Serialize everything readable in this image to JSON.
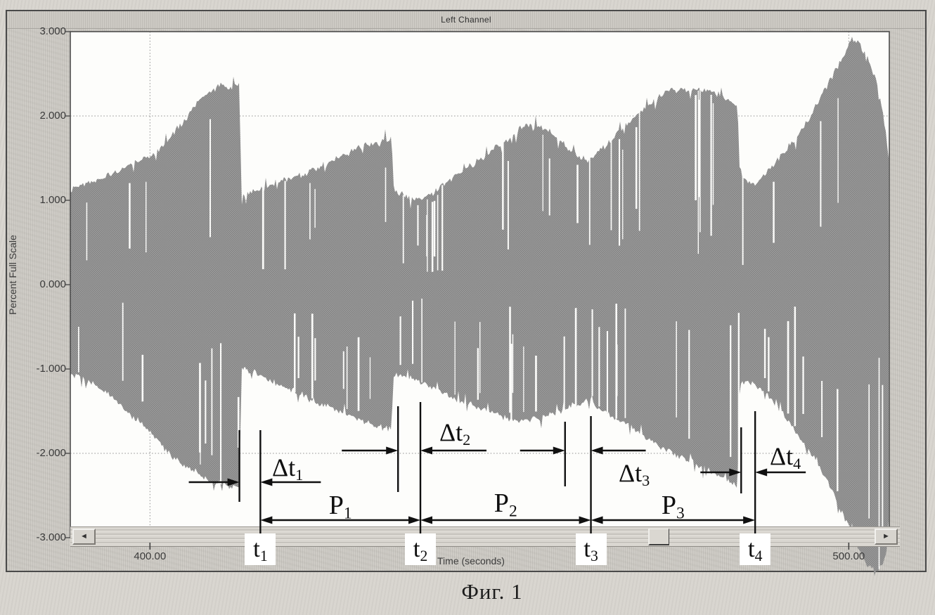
{
  "window": {
    "title": "Left Channel"
  },
  "figure": {
    "caption": "Фиг. 1"
  },
  "scrollbar": {
    "left_arrow": "◄",
    "right_arrow": "►"
  },
  "chart_data": {
    "type": "area",
    "subtype": "audio-waveform-envelope",
    "title": "Left Channel",
    "xlabel": "Time (seconds)",
    "ylabel": "Percent Full Scale",
    "xlim": [
      388.6,
      505.8
    ],
    "ylim": [
      -3.0,
      3.0
    ],
    "grid": true,
    "y_ticks": [
      {
        "value": 3,
        "label": "3.000"
      },
      {
        "value": 2,
        "label": "2.000"
      },
      {
        "value": 1,
        "label": "1.000"
      },
      {
        "value": 0,
        "label": "0.000"
      },
      {
        "value": -1,
        "label": "-1.000"
      },
      {
        "value": -2,
        "label": "-2.000"
      },
      {
        "value": -3,
        "label": "-3.000"
      }
    ],
    "x_ticks": [
      {
        "value": 400.0,
        "label": "400.00"
      },
      {
        "value": 500.0,
        "label": "500.00"
      }
    ],
    "series": [
      {
        "name": "envelope_top",
        "points": [
          [
            388.6,
            1.12
          ],
          [
            390,
            1.18
          ],
          [
            392,
            1.22
          ],
          [
            394,
            1.3
          ],
          [
            396,
            1.36
          ],
          [
            398,
            1.45
          ],
          [
            400,
            1.52
          ],
          [
            401.5,
            1.62
          ],
          [
            403,
            1.76
          ],
          [
            404.5,
            1.9
          ],
          [
            406,
            2.06
          ],
          [
            407.5,
            2.25
          ],
          [
            409,
            2.32
          ],
          [
            410.5,
            2.36
          ],
          [
            412,
            2.34
          ],
          [
            412.8,
            2.36
          ],
          [
            413.1,
            1.04
          ],
          [
            414.2,
            1.08
          ],
          [
            415.8,
            1.13
          ],
          [
            417.5,
            1.19
          ],
          [
            419.5,
            1.25
          ],
          [
            421.5,
            1.3
          ],
          [
            423.5,
            1.36
          ],
          [
            425.5,
            1.44
          ],
          [
            427.5,
            1.52
          ],
          [
            429.5,
            1.6
          ],
          [
            431,
            1.66
          ],
          [
            432.5,
            1.68
          ],
          [
            434.6,
            1.71
          ],
          [
            434.9,
            1.12
          ],
          [
            436,
            1.07
          ],
          [
            437.5,
            1.02
          ],
          [
            438.8,
            1.0
          ],
          [
            440,
            1.06
          ],
          [
            441.5,
            1.15
          ],
          [
            443,
            1.25
          ],
          [
            444.5,
            1.34
          ],
          [
            446,
            1.42
          ],
          [
            447.5,
            1.5
          ],
          [
            449,
            1.6
          ],
          [
            450.5,
            1.68
          ],
          [
            452,
            1.78
          ],
          [
            453.5,
            1.88
          ],
          [
            454.8,
            1.9
          ],
          [
            456,
            1.86
          ],
          [
            457.5,
            1.79
          ],
          [
            459,
            1.68
          ],
          [
            460.5,
            1.58
          ],
          [
            462,
            1.5
          ],
          [
            462.9,
            1.47
          ],
          [
            463.4,
            1.52
          ],
          [
            465,
            1.64
          ],
          [
            466.5,
            1.77
          ],
          [
            468,
            1.9
          ],
          [
            469.5,
            2.0
          ],
          [
            471,
            2.1
          ],
          [
            472.5,
            2.2
          ],
          [
            474,
            2.28
          ],
          [
            475.5,
            2.32
          ],
          [
            477,
            2.29
          ],
          [
            478.5,
            2.32
          ],
          [
            480,
            2.3
          ],
          [
            481.5,
            2.25
          ],
          [
            483,
            2.18
          ],
          [
            484.1,
            2.12
          ],
          [
            484.4,
            1.27
          ],
          [
            485.5,
            1.22
          ],
          [
            486.6,
            1.2
          ],
          [
            488,
            1.31
          ],
          [
            489.5,
            1.44
          ],
          [
            491,
            1.59
          ],
          [
            492.5,
            1.74
          ],
          [
            494,
            1.94
          ],
          [
            495.5,
            2.14
          ],
          [
            497,
            2.38
          ],
          [
            498.5,
            2.6
          ],
          [
            499.5,
            2.76
          ],
          [
            500.4,
            2.92
          ],
          [
            501.2,
            2.88
          ],
          [
            502,
            2.78
          ],
          [
            503,
            2.62
          ],
          [
            504,
            2.4
          ],
          [
            504.8,
            2.1
          ],
          [
            505.4,
            1.72
          ],
          [
            505.8,
            1.42
          ]
        ]
      },
      {
        "name": "envelope_bottom",
        "points": [
          [
            388.6,
            -1.05
          ],
          [
            390,
            -1.1
          ],
          [
            392,
            -1.18
          ],
          [
            394,
            -1.3
          ],
          [
            396,
            -1.44
          ],
          [
            398,
            -1.6
          ],
          [
            400,
            -1.74
          ],
          [
            402,
            -1.94
          ],
          [
            404,
            -2.1
          ],
          [
            406,
            -2.2
          ],
          [
            408,
            -2.3
          ],
          [
            410,
            -2.36
          ],
          [
            411.5,
            -2.38
          ],
          [
            412.8,
            -2.4
          ],
          [
            413.1,
            -0.98
          ],
          [
            414.5,
            -1.02
          ],
          [
            416,
            -1.09
          ],
          [
            418,
            -1.17
          ],
          [
            420,
            -1.24
          ],
          [
            422,
            -1.32
          ],
          [
            424,
            -1.4
          ],
          [
            426,
            -1.47
          ],
          [
            428,
            -1.54
          ],
          [
            430,
            -1.61
          ],
          [
            432,
            -1.67
          ],
          [
            434.6,
            -1.72
          ],
          [
            434.9,
            -1.05
          ],
          [
            436.5,
            -1.1
          ],
          [
            438.5,
            -1.15
          ],
          [
            440.5,
            -1.22
          ],
          [
            442.5,
            -1.3
          ],
          [
            444.5,
            -1.38
          ],
          [
            447,
            -1.45
          ],
          [
            449,
            -1.52
          ],
          [
            451,
            -1.58
          ],
          [
            453,
            -1.62
          ],
          [
            455,
            -1.6
          ],
          [
            457,
            -1.55
          ],
          [
            459,
            -1.48
          ],
          [
            461,
            -1.42
          ],
          [
            462.9,
            -1.38
          ],
          [
            463.4,
            -1.43
          ],
          [
            465,
            -1.5
          ],
          [
            467,
            -1.6
          ],
          [
            469,
            -1.7
          ],
          [
            471,
            -1.81
          ],
          [
            473,
            -1.92
          ],
          [
            475,
            -2.0
          ],
          [
            477,
            -2.08
          ],
          [
            479,
            -2.16
          ],
          [
            481,
            -2.25
          ],
          [
            482.5,
            -2.32
          ],
          [
            484.1,
            -2.38
          ],
          [
            484.4,
            -1.18
          ],
          [
            486,
            -1.15
          ],
          [
            487.5,
            -1.24
          ],
          [
            489,
            -1.38
          ],
          [
            491,
            -1.57
          ],
          [
            493,
            -1.82
          ],
          [
            495,
            -2.05
          ],
          [
            496.5,
            -2.28
          ],
          [
            498,
            -2.52
          ],
          [
            499.5,
            -2.78
          ],
          [
            500.8,
            -3.0
          ],
          [
            501.8,
            -3.22
          ],
          [
            502.8,
            -3.36
          ],
          [
            504,
            -3.38
          ],
          [
            505,
            -3.3
          ],
          [
            505.5,
            -3.08
          ],
          [
            505.8,
            -2.6
          ]
        ]
      }
    ],
    "annotations": {
      "deltas": [
        {
          "base": "Δt",
          "sub": "1",
          "from_s": 412.8,
          "to_s": 415.8
        },
        {
          "base": "Δt",
          "sub": "2",
          "from_s": 435.5,
          "to_s": 438.7
        },
        {
          "base": "Δt",
          "sub": "3",
          "from_s": 459.4,
          "to_s": 463.1
        },
        {
          "base": "Δt",
          "sub": "4",
          "from_s": 484.6,
          "to_s": 486.6
        }
      ],
      "periods": [
        {
          "base": "P",
          "sub": "1",
          "from_s": 415.8,
          "to_s": 438.7
        },
        {
          "base": "P",
          "sub": "2",
          "from_s": 438.7,
          "to_s": 463.1
        },
        {
          "base": "P",
          "sub": "3",
          "from_s": 463.1,
          "to_s": 486.6
        }
      ],
      "times": [
        {
          "base": "t",
          "sub": "1",
          "t_s": 415.8
        },
        {
          "base": "t",
          "sub": "2",
          "t_s": 438.7
        },
        {
          "base": "t",
          "sub": "3",
          "t_s": 463.1
        },
        {
          "base": "t",
          "sub": "4",
          "t_s": 486.6
        }
      ]
    },
    "waveform_style": {
      "fill_base": "#9e9e9e",
      "fill_check": "#818181",
      "dropout_count": 88,
      "grid_color": "#8f8f8f",
      "annotation_color": "#101010"
    }
  }
}
